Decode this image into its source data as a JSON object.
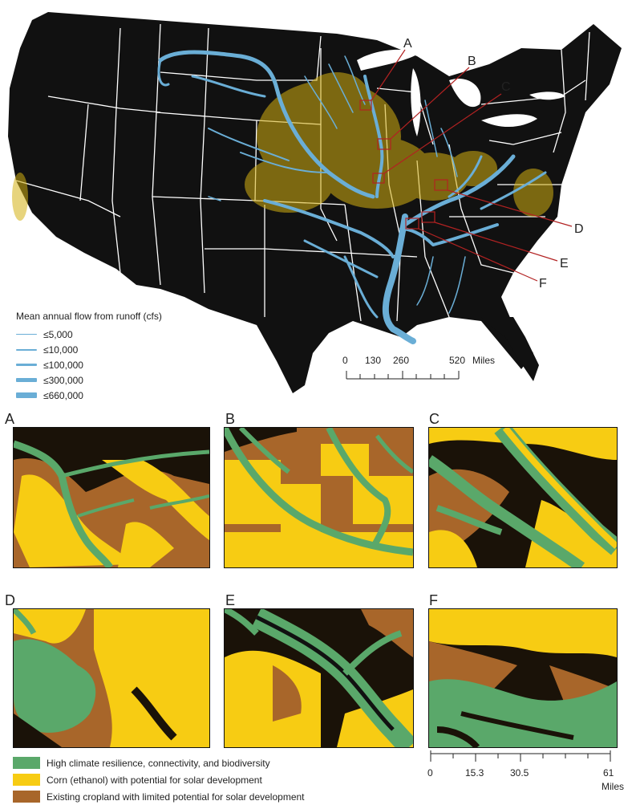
{
  "callouts": {
    "a": "A",
    "b": "B",
    "c": "C",
    "d": "D",
    "e": "E",
    "f": "F"
  },
  "flow_legend": {
    "title": "Mean annual flow from runoff (cfs)",
    "items": [
      {
        "label": "≤5,000"
      },
      {
        "label": "≤10,000"
      },
      {
        "label": "≤100,000"
      },
      {
        "label": "≤300,000"
      },
      {
        "label": "≤660,000"
      }
    ]
  },
  "main_scale": {
    "ticks": [
      "0",
      "130",
      "260",
      "520"
    ],
    "unit": "Miles"
  },
  "panels": {
    "a": "A",
    "b": "B",
    "c": "C",
    "d": "D",
    "e": "E",
    "f": "F"
  },
  "class_legend": [
    {
      "label": "High climate resilience, connectivity, and biodiversity",
      "color": "#5aa86a"
    },
    {
      "label": "Corn (ethanol) with potential for solar development",
      "color": "#f7cc13"
    },
    {
      "label": "Existing cropland with limited potential for solar development",
      "color": "#a8662a"
    }
  ],
  "panel_scale": {
    "ticks": [
      "0",
      "15.3",
      "30.5",
      "61"
    ],
    "unit": "Miles"
  },
  "colors": {
    "water": "#6aaed6",
    "land": "#111111",
    "borders": "#ffffff",
    "box": "#b22222"
  }
}
